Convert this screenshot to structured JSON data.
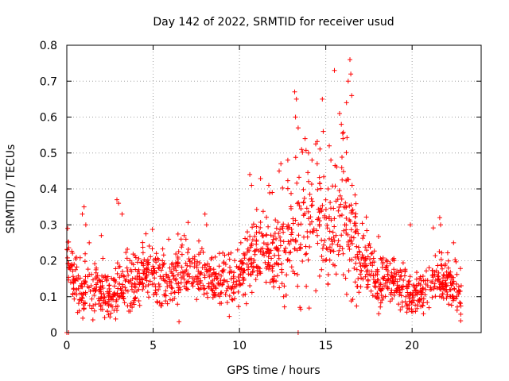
{
  "chart_data": {
    "type": "scatter",
    "title": "Day 142 of 2022, SRMTID for receiver usud",
    "xlabel": "GPS time / hours",
    "ylabel": "SRMTID / TECUs",
    "xlim": [
      0,
      24
    ],
    "ylim": [
      0,
      0.8
    ],
    "xticks": [
      0,
      5,
      10,
      15,
      20
    ],
    "xtick_labels": [
      "0",
      "5",
      "10",
      "15",
      "20"
    ],
    "yticks": [
      0,
      0.1,
      0.2,
      0.3,
      0.4,
      0.5,
      0.6,
      0.7,
      0.8
    ],
    "ytick_labels": [
      "0",
      "0.1",
      "0.2",
      "0.3",
      "0.4",
      "0.5",
      "0.6",
      "0.7",
      "0.8"
    ],
    "grid": true,
    "marker": "+",
    "series": [
      {
        "name": "SRMTID",
        "color": "#ff0000",
        "envelope": [
          [
            0.0,
            0.22,
            0.03
          ],
          [
            0.4,
            0.15,
            0.05
          ],
          [
            0.8,
            0.1,
            0.04
          ],
          [
            1.2,
            0.12,
            0.05
          ],
          [
            1.6,
            0.13,
            0.05
          ],
          [
            2.0,
            0.11,
            0.04
          ],
          [
            2.5,
            0.09,
            0.04
          ],
          [
            3.0,
            0.12,
            0.05
          ],
          [
            3.5,
            0.13,
            0.05
          ],
          [
            4.0,
            0.14,
            0.05
          ],
          [
            4.5,
            0.15,
            0.05
          ],
          [
            5.0,
            0.16,
            0.05
          ],
          [
            5.5,
            0.15,
            0.05
          ],
          [
            6.0,
            0.15,
            0.05
          ],
          [
            6.5,
            0.16,
            0.05
          ],
          [
            7.0,
            0.17,
            0.05
          ],
          [
            7.5,
            0.16,
            0.05
          ],
          [
            8.0,
            0.15,
            0.04
          ],
          [
            8.5,
            0.15,
            0.04
          ],
          [
            9.0,
            0.14,
            0.04
          ],
          [
            9.5,
            0.14,
            0.04
          ],
          [
            10.0,
            0.15,
            0.05
          ],
          [
            10.5,
            0.2,
            0.06
          ],
          [
            11.0,
            0.22,
            0.07
          ],
          [
            11.5,
            0.22,
            0.07
          ],
          [
            12.0,
            0.2,
            0.07
          ],
          [
            12.5,
            0.22,
            0.08
          ],
          [
            13.0,
            0.25,
            0.09
          ],
          [
            13.5,
            0.28,
            0.1
          ],
          [
            14.0,
            0.32,
            0.11
          ],
          [
            14.5,
            0.3,
            0.11
          ],
          [
            15.0,
            0.3,
            0.12
          ],
          [
            15.5,
            0.3,
            0.12
          ],
          [
            16.0,
            0.33,
            0.13
          ],
          [
            16.5,
            0.28,
            0.12
          ],
          [
            17.0,
            0.2,
            0.07
          ],
          [
            17.5,
            0.18,
            0.06
          ],
          [
            18.0,
            0.15,
            0.05
          ],
          [
            18.5,
            0.14,
            0.05
          ],
          [
            19.0,
            0.13,
            0.04
          ],
          [
            19.5,
            0.12,
            0.04
          ],
          [
            20.0,
            0.1,
            0.03
          ],
          [
            20.5,
            0.1,
            0.03
          ],
          [
            21.0,
            0.13,
            0.04
          ],
          [
            21.5,
            0.15,
            0.05
          ],
          [
            22.0,
            0.14,
            0.04
          ],
          [
            22.5,
            0.12,
            0.04
          ],
          [
            22.9,
            0.1,
            0.04
          ]
        ],
        "spikes": [
          [
            0.05,
            0.29
          ],
          [
            0.9,
            0.33
          ],
          [
            1.0,
            0.35
          ],
          [
            1.1,
            0.3
          ],
          [
            2.9,
            0.37
          ],
          [
            3.0,
            0.36
          ],
          [
            3.2,
            0.33
          ],
          [
            5.9,
            0.26
          ],
          [
            6.8,
            0.27
          ],
          [
            8.0,
            0.33
          ],
          [
            8.1,
            0.3
          ],
          [
            10.6,
            0.44
          ],
          [
            10.7,
            0.41
          ],
          [
            11.7,
            0.41
          ],
          [
            11.9,
            0.39
          ],
          [
            12.3,
            0.45
          ],
          [
            12.4,
            0.47
          ],
          [
            12.8,
            0.48
          ],
          [
            13.2,
            0.67
          ],
          [
            13.3,
            0.65
          ],
          [
            13.25,
            0.6
          ],
          [
            13.4,
            0.57
          ],
          [
            13.6,
            0.51
          ],
          [
            13.8,
            0.54
          ],
          [
            14.0,
            0.5
          ],
          [
            14.2,
            0.48
          ],
          [
            14.5,
            0.47
          ],
          [
            14.8,
            0.65
          ],
          [
            14.85,
            0.56
          ],
          [
            15.2,
            0.52
          ],
          [
            15.5,
            0.73
          ],
          [
            15.8,
            0.61
          ],
          [
            15.9,
            0.58
          ],
          [
            16.0,
            0.54
          ],
          [
            16.2,
            0.64
          ],
          [
            16.3,
            0.7
          ],
          [
            16.4,
            0.76
          ],
          [
            16.45,
            0.72
          ],
          [
            16.5,
            0.66
          ],
          [
            15.3,
            0.48
          ],
          [
            13.5,
            0.07
          ],
          [
            13.55,
            0.065
          ],
          [
            19.9,
            0.3
          ],
          [
            21.6,
            0.32
          ],
          [
            21.65,
            0.3
          ],
          [
            22.4,
            0.25
          ],
          [
            2.0,
            0.27
          ],
          [
            1.3,
            0.25
          ],
          [
            6.5,
            0.03
          ],
          [
            0.0,
            0.0
          ],
          [
            13.4,
            0.0
          ],
          [
            0.1,
            0.0
          ]
        ]
      }
    ]
  }
}
